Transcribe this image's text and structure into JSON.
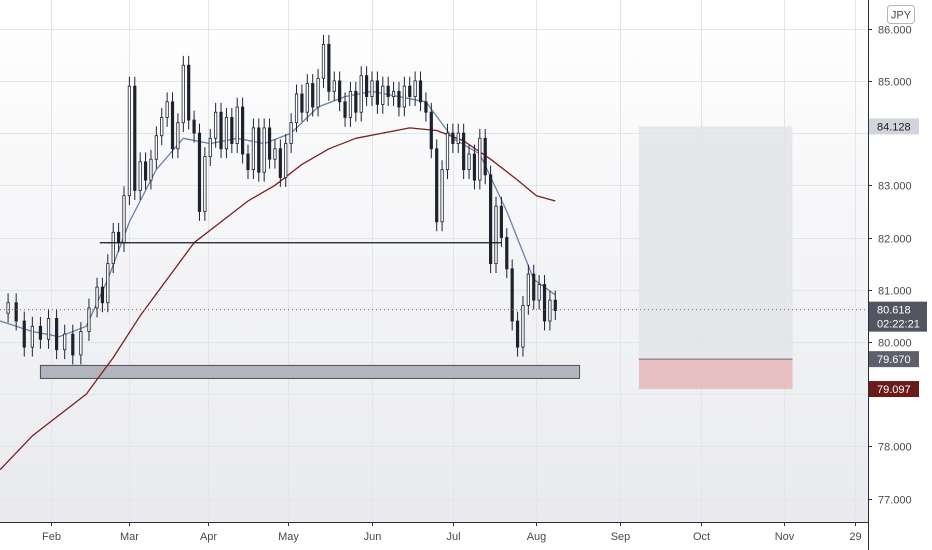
{
  "chart_data": {
    "type": "line",
    "style": "candlestick",
    "currency_label": "JPY",
    "x_tick_labels": [
      "Feb",
      "Mar",
      "Apr",
      "May",
      "Jun",
      "Jul",
      "Aug",
      "Sep",
      "Oct",
      "Nov",
      "29"
    ],
    "x_tick_days": [
      12,
      41,
      70,
      100,
      131,
      161,
      192,
      223,
      253,
      284,
      310
    ],
    "y_tick_values": [
      77.0,
      78.0,
      79.0,
      80.0,
      81.0,
      82.0,
      83.0,
      84.0,
      85.0,
      86.0
    ],
    "y_tick_labels": [
      "77.000",
      "78.000",
      "",
      "80.000",
      "81.000",
      "82.000",
      "83.000",
      "",
      "85.000",
      "86.000"
    ],
    "ylim": [
      76.55,
      86.55
    ],
    "xlim": [
      -7,
      315
    ],
    "grid": true,
    "price_closes": [
      [
        -7,
        80.55
      ],
      [
        -4,
        80.75
      ],
      [
        -1,
        80.4
      ],
      [
        2,
        79.9
      ],
      [
        5,
        80.3
      ],
      [
        8,
        80.05
      ],
      [
        11,
        80.45
      ],
      [
        14,
        79.85
      ],
      [
        17,
        80.15
      ],
      [
        20,
        79.75
      ],
      [
        23,
        80.2
      ],
      [
        26,
        80.65
      ],
      [
        29,
        81.05
      ],
      [
        31,
        80.75
      ],
      [
        33,
        81.5
      ],
      [
        35,
        82.1
      ],
      [
        37,
        81.9
      ],
      [
        39,
        82.8
      ],
      [
        41,
        84.9
      ],
      [
        43,
        82.9
      ],
      [
        45,
        83.45
      ],
      [
        47,
        83.1
      ],
      [
        49,
        83.5
      ],
      [
        51,
        83.95
      ],
      [
        53,
        84.3
      ],
      [
        55,
        84.6
      ],
      [
        57,
        83.7
      ],
      [
        59,
        84.2
      ],
      [
        61,
        85.3
      ],
      [
        63,
        84.25
      ],
      [
        65,
        84.0
      ],
      [
        67,
        82.5
      ],
      [
        69,
        83.55
      ],
      [
        71,
        83.9
      ],
      [
        73,
        84.4
      ],
      [
        75,
        83.7
      ],
      [
        77,
        84.3
      ],
      [
        79,
        83.8
      ],
      [
        81,
        84.5
      ],
      [
        83,
        83.6
      ],
      [
        85,
        83.3
      ],
      [
        87,
        84.1
      ],
      [
        89,
        83.25
      ],
      [
        91,
        84.1
      ],
      [
        93,
        83.5
      ],
      [
        95,
        83.7
      ],
      [
        97,
        83.15
      ],
      [
        99,
        83.8
      ],
      [
        101,
        84.2
      ],
      [
        103,
        84.75
      ],
      [
        105,
        84.4
      ],
      [
        107,
        84.95
      ],
      [
        109,
        84.5
      ],
      [
        111,
        85.05
      ],
      [
        113,
        85.7
      ],
      [
        115,
        84.8
      ],
      [
        117,
        85.0
      ],
      [
        119,
        84.6
      ],
      [
        121,
        84.3
      ],
      [
        123,
        84.8
      ],
      [
        125,
        84.4
      ],
      [
        127,
        85.1
      ],
      [
        129,
        84.7
      ],
      [
        131,
        85.0
      ],
      [
        133,
        84.55
      ],
      [
        135,
        84.9
      ],
      [
        137,
        84.7
      ],
      [
        139,
        84.8
      ],
      [
        141,
        84.5
      ],
      [
        143,
        84.9
      ],
      [
        145,
        84.7
      ],
      [
        147,
        85.0
      ],
      [
        149,
        84.6
      ],
      [
        151,
        84.4
      ],
      [
        153,
        83.7
      ],
      [
        155,
        82.3
      ],
      [
        157,
        83.3
      ],
      [
        159,
        84.0
      ],
      [
        161,
        83.8
      ],
      [
        163,
        84.0
      ],
      [
        165,
        83.3
      ],
      [
        167,
        83.6
      ],
      [
        169,
        83.1
      ],
      [
        171,
        83.9
      ],
      [
        173,
        83.2
      ],
      [
        175,
        81.5
      ],
      [
        177,
        82.6
      ],
      [
        179,
        82.0
      ],
      [
        181,
        81.4
      ],
      [
        183,
        80.4
      ],
      [
        185,
        79.9
      ],
      [
        187,
        80.7
      ],
      [
        189,
        81.3
      ],
      [
        191,
        80.8
      ],
      [
        193,
        81.1
      ],
      [
        195,
        80.4
      ],
      [
        197,
        80.8
      ],
      [
        199,
        80.6
      ]
    ],
    "sma_fast": [
      [
        -7,
        80.4
      ],
      [
        5,
        80.2
      ],
      [
        15,
        80.1
      ],
      [
        25,
        80.3
      ],
      [
        33,
        81.2
      ],
      [
        41,
        82.3
      ],
      [
        51,
        83.3
      ],
      [
        61,
        83.9
      ],
      [
        71,
        83.8
      ],
      [
        81,
        83.9
      ],
      [
        91,
        83.8
      ],
      [
        101,
        84.0
      ],
      [
        111,
        84.5
      ],
      [
        121,
        84.7
      ],
      [
        131,
        84.8
      ],
      [
        141,
        84.7
      ],
      [
        151,
        84.6
      ],
      [
        161,
        83.9
      ],
      [
        171,
        83.6
      ],
      [
        181,
        82.5
      ],
      [
        191,
        81.2
      ],
      [
        199,
        80.9
      ]
    ],
    "sma_slow": [
      [
        -7,
        77.55
      ],
      [
        5,
        78.2
      ],
      [
        15,
        78.6
      ],
      [
        25,
        79.0
      ],
      [
        35,
        79.7
      ],
      [
        45,
        80.5
      ],
      [
        55,
        81.2
      ],
      [
        65,
        81.9
      ],
      [
        75,
        82.3
      ],
      [
        85,
        82.7
      ],
      [
        95,
        83.0
      ],
      [
        105,
        83.4
      ],
      [
        115,
        83.7
      ],
      [
        125,
        83.9
      ],
      [
        135,
        84.0
      ],
      [
        145,
        84.1
      ],
      [
        155,
        84.05
      ],
      [
        165,
        83.85
      ],
      [
        175,
        83.5
      ],
      [
        185,
        83.1
      ],
      [
        192,
        82.8
      ],
      [
        199,
        82.7
      ]
    ],
    "resistance_line": {
      "x": [
        30,
        179
      ],
      "y": 81.9
    },
    "support_zone": {
      "x": [
        8,
        208
      ],
      "y": [
        79.3,
        79.55
      ]
    },
    "target_zone": {
      "x": [
        230,
        287
      ],
      "y": [
        79.67,
        84.128
      ]
    },
    "stop_zone": {
      "x": [
        230,
        287
      ],
      "y": [
        79.097,
        79.67
      ]
    },
    "last_price": 80.618,
    "countdown": "02:22:21",
    "price_tags": [
      {
        "value": 84.128,
        "label": "84.128",
        "color": "#d1d4dc"
      },
      {
        "value": 79.67,
        "label": "79.670",
        "color": "#5d606b"
      },
      {
        "value": 79.097,
        "label": "79.097",
        "color": "#6b1a1a"
      }
    ],
    "colors": {
      "candle": "#1e222d",
      "sma_fast": "#6a82a6",
      "sma_slow": "#7a1f1f",
      "support_fill": "#b2b5be",
      "support_stroke": "#4b4f59",
      "target_fill": "#e3e4e8",
      "stop_fill": "#e7b7b9",
      "last_price_tag": "#525560"
    }
  }
}
